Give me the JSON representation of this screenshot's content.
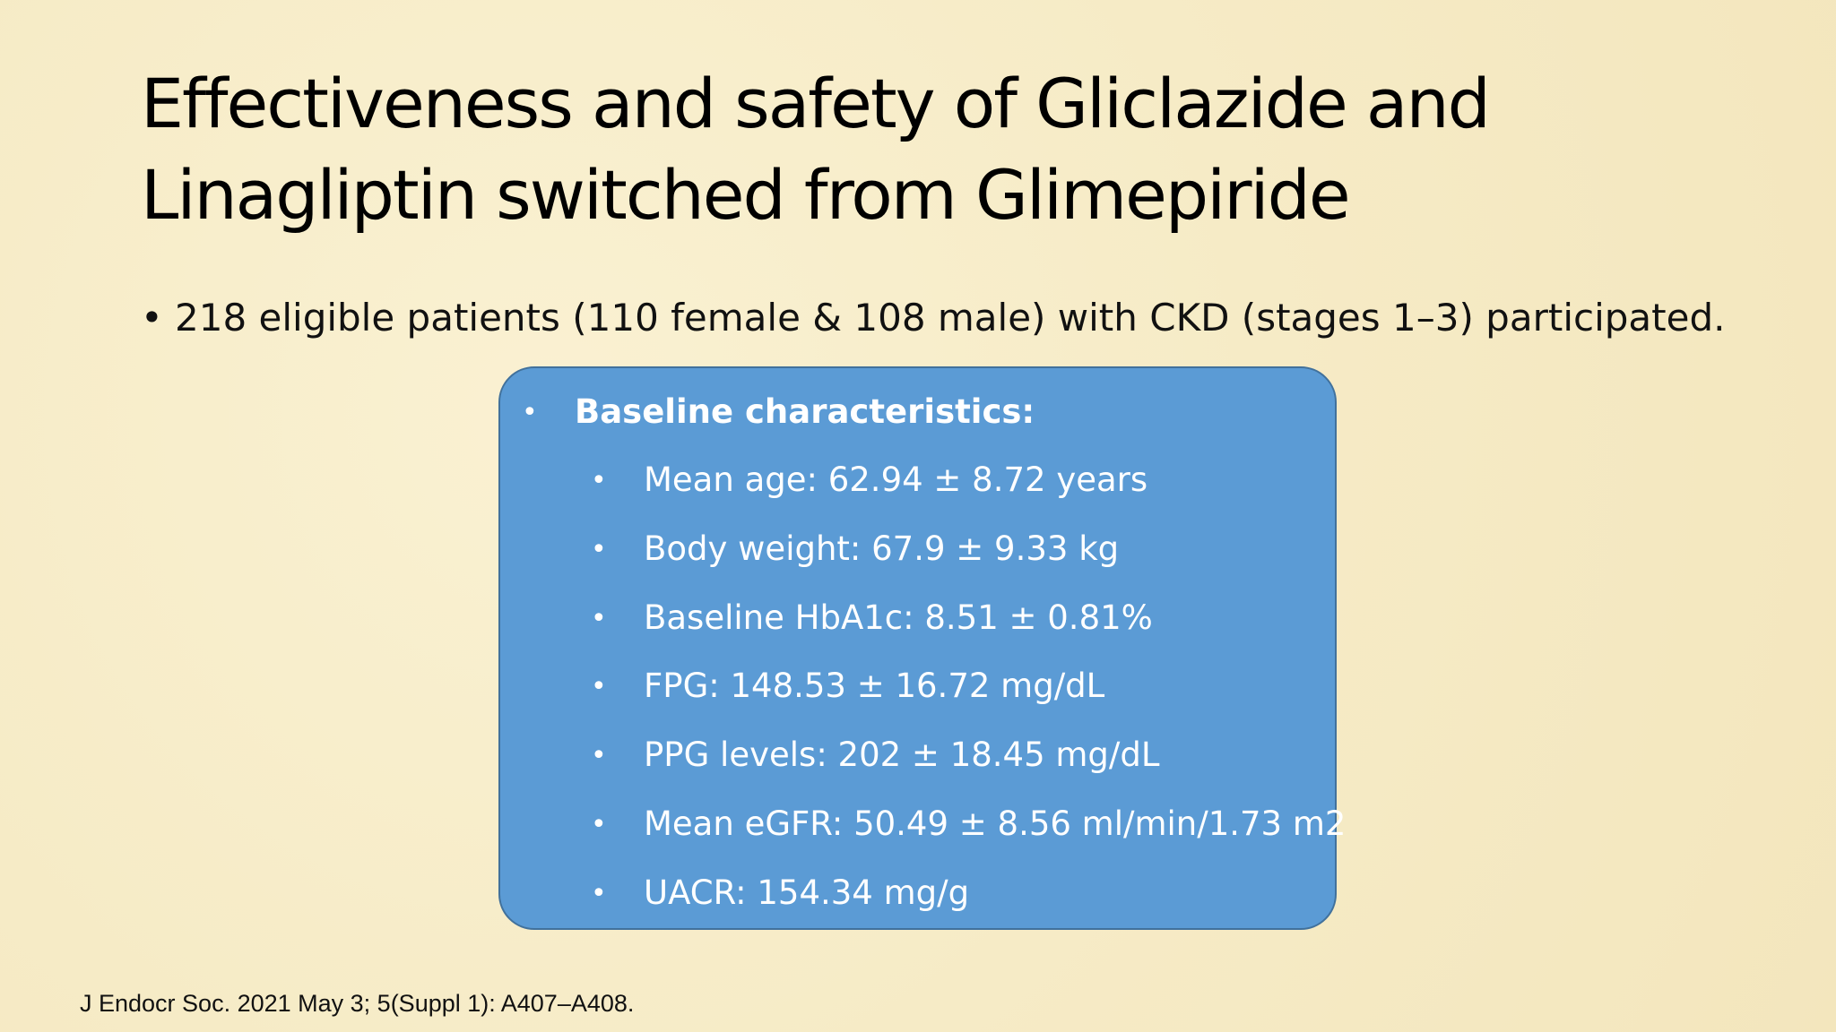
{
  "slide": {
    "title": [
      "Effectiveness and safety of Gliclazide and",
      "Linagliptin switched from Glimepiride"
    ],
    "bullet": "218 eligible patients (110 female & 108 male) with CKD (stages 1–3) participated.",
    "box": {
      "heading": "Baseline characteristics:",
      "items": [
        "Mean age: 62.94 ± 8.72 years",
        "Body weight: 67.9 ± 9.33 kg",
        "Baseline HbA1c: 8.51 ± 0.81%",
        "FPG: 148.53 ± 16.72 mg/dL",
        "PPG levels: 202 ± 18.45 mg/dL",
        "Mean eGFR: 50.49 ± 8.56 ml/min/1.73 m2",
        "UACR: 154.34 mg/g"
      ]
    },
    "citation": "J Endocr Soc. 2021 May 3; 5(Suppl 1): A407–A408."
  }
}
